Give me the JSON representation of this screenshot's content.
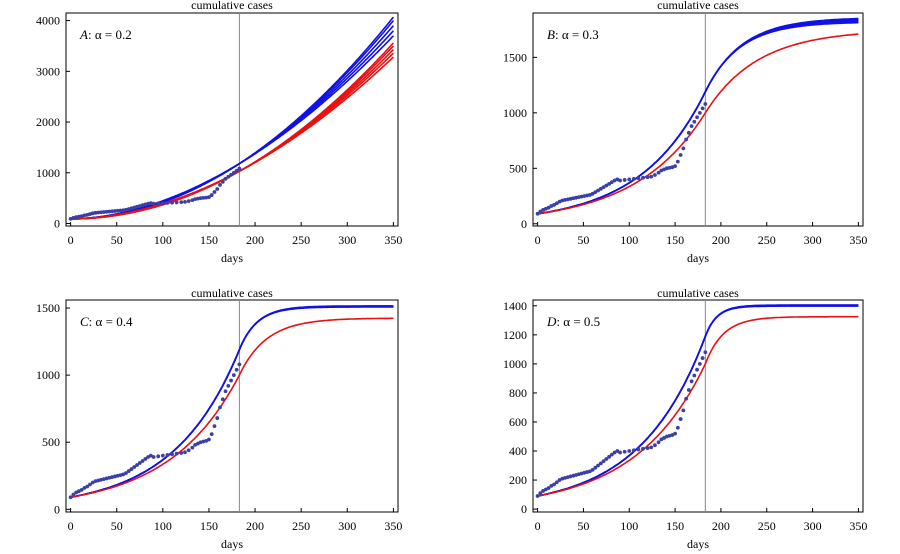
{
  "figure": {
    "colors": {
      "blue": "#1010e8",
      "red": "#e81010",
      "dots": "#3b3fa8",
      "vline": "#888888"
    }
  },
  "chart_data": [
    {
      "id": "A",
      "type": "line",
      "title": "cumulative cases",
      "xlabel": "days",
      "panel_letter": "A",
      "alpha_label": "α = 0.2",
      "xlim": [
        -5,
        355
      ],
      "ylim": [
        -50,
        4150
      ],
      "xticks": [
        0,
        50,
        100,
        150,
        200,
        250,
        300,
        350
      ],
      "yticks": [
        0,
        1000,
        2000,
        3000,
        4000
      ],
      "vertical_line_x": 183,
      "series_params": {
        "blue_end": [
          3700,
          3800,
          3900,
          4000,
          4070
        ],
        "red_end": [
          3280,
          3360,
          3430,
          3500,
          3560
        ],
        "blue_at_183": 1180,
        "red_at_183": 1030,
        "start": 90
      }
    },
    {
      "id": "B",
      "type": "line",
      "title": "cumulative cases",
      "xlabel": "days",
      "panel_letter": "B",
      "alpha_label": "α = 0.3",
      "xlim": [
        -5,
        355
      ],
      "ylim": [
        -20,
        1900
      ],
      "xticks": [
        0,
        50,
        100,
        150,
        200,
        250,
        300,
        350
      ],
      "yticks": [
        0,
        500,
        1000,
        1500
      ],
      "vertical_line_x": 183,
      "series_params": {
        "blue_plateau": [
          1820,
          1830,
          1840,
          1850,
          1860
        ],
        "red_plateau": 1750,
        "blue_at_183": 1190,
        "red_at_183": 1000,
        "start": 90,
        "rate": 0.018
      }
    },
    {
      "id": "C",
      "type": "line",
      "title": "cumulative cases",
      "xlabel": "days",
      "panel_letter": "C",
      "alpha_label": "α = 0.4",
      "xlim": [
        -5,
        355
      ],
      "ylim": [
        -20,
        1560
      ],
      "xticks": [
        0,
        50,
        100,
        150,
        200,
        250,
        300,
        350
      ],
      "yticks": [
        0,
        500,
        1000,
        1500
      ],
      "vertical_line_x": 183,
      "series_params": {
        "blue_plateau": [
          1508,
          1510,
          1512,
          1514,
          1516
        ],
        "red_plateau": 1425,
        "blue_at_183": 1190,
        "red_at_183": 1000,
        "start": 90,
        "rate": 0.04
      }
    },
    {
      "id": "D",
      "type": "line",
      "title": "cumulative cases",
      "xlabel": "days",
      "panel_letter": "D",
      "alpha_label": "α = 0.5",
      "xlim": [
        -5,
        355
      ],
      "ylim": [
        -20,
        1440
      ],
      "xticks": [
        0,
        50,
        100,
        150,
        200,
        250,
        300,
        350
      ],
      "yticks": [
        0,
        200,
        400,
        600,
        800,
        1000,
        1200,
        1400
      ],
      "vertical_line_x": 183,
      "series_params": {
        "blue_plateau": [
          1398,
          1400,
          1402,
          1404,
          1405
        ],
        "red_plateau": 1325,
        "blue_at_183": 1190,
        "red_at_183": 1000,
        "start": 90,
        "rate": 0.06
      }
    }
  ],
  "observed_points": {
    "x": [
      0,
      3,
      6,
      9,
      12,
      15,
      18,
      21,
      24,
      27,
      30,
      33,
      36,
      39,
      42,
      45,
      48,
      51,
      54,
      57,
      60,
      63,
      66,
      69,
      72,
      75,
      78,
      81,
      84,
      87,
      90,
      95,
      100,
      105,
      110,
      115,
      120,
      124,
      128,
      132,
      135,
      138,
      141,
      144,
      147,
      150,
      153,
      156,
      159,
      162,
      165,
      168,
      171,
      174,
      177,
      180,
      183
    ],
    "y": [
      90,
      110,
      125,
      135,
      145,
      160,
      170,
      185,
      200,
      210,
      215,
      220,
      225,
      230,
      235,
      240,
      245,
      250,
      255,
      260,
      270,
      285,
      300,
      315,
      330,
      345,
      360,
      375,
      390,
      400,
      390,
      395,
      400,
      405,
      410,
      415,
      420,
      425,
      440,
      460,
      480,
      490,
      500,
      505,
      510,
      520,
      560,
      620,
      680,
      760,
      820,
      880,
      920,
      960,
      1000,
      1040,
      1080
    ]
  }
}
